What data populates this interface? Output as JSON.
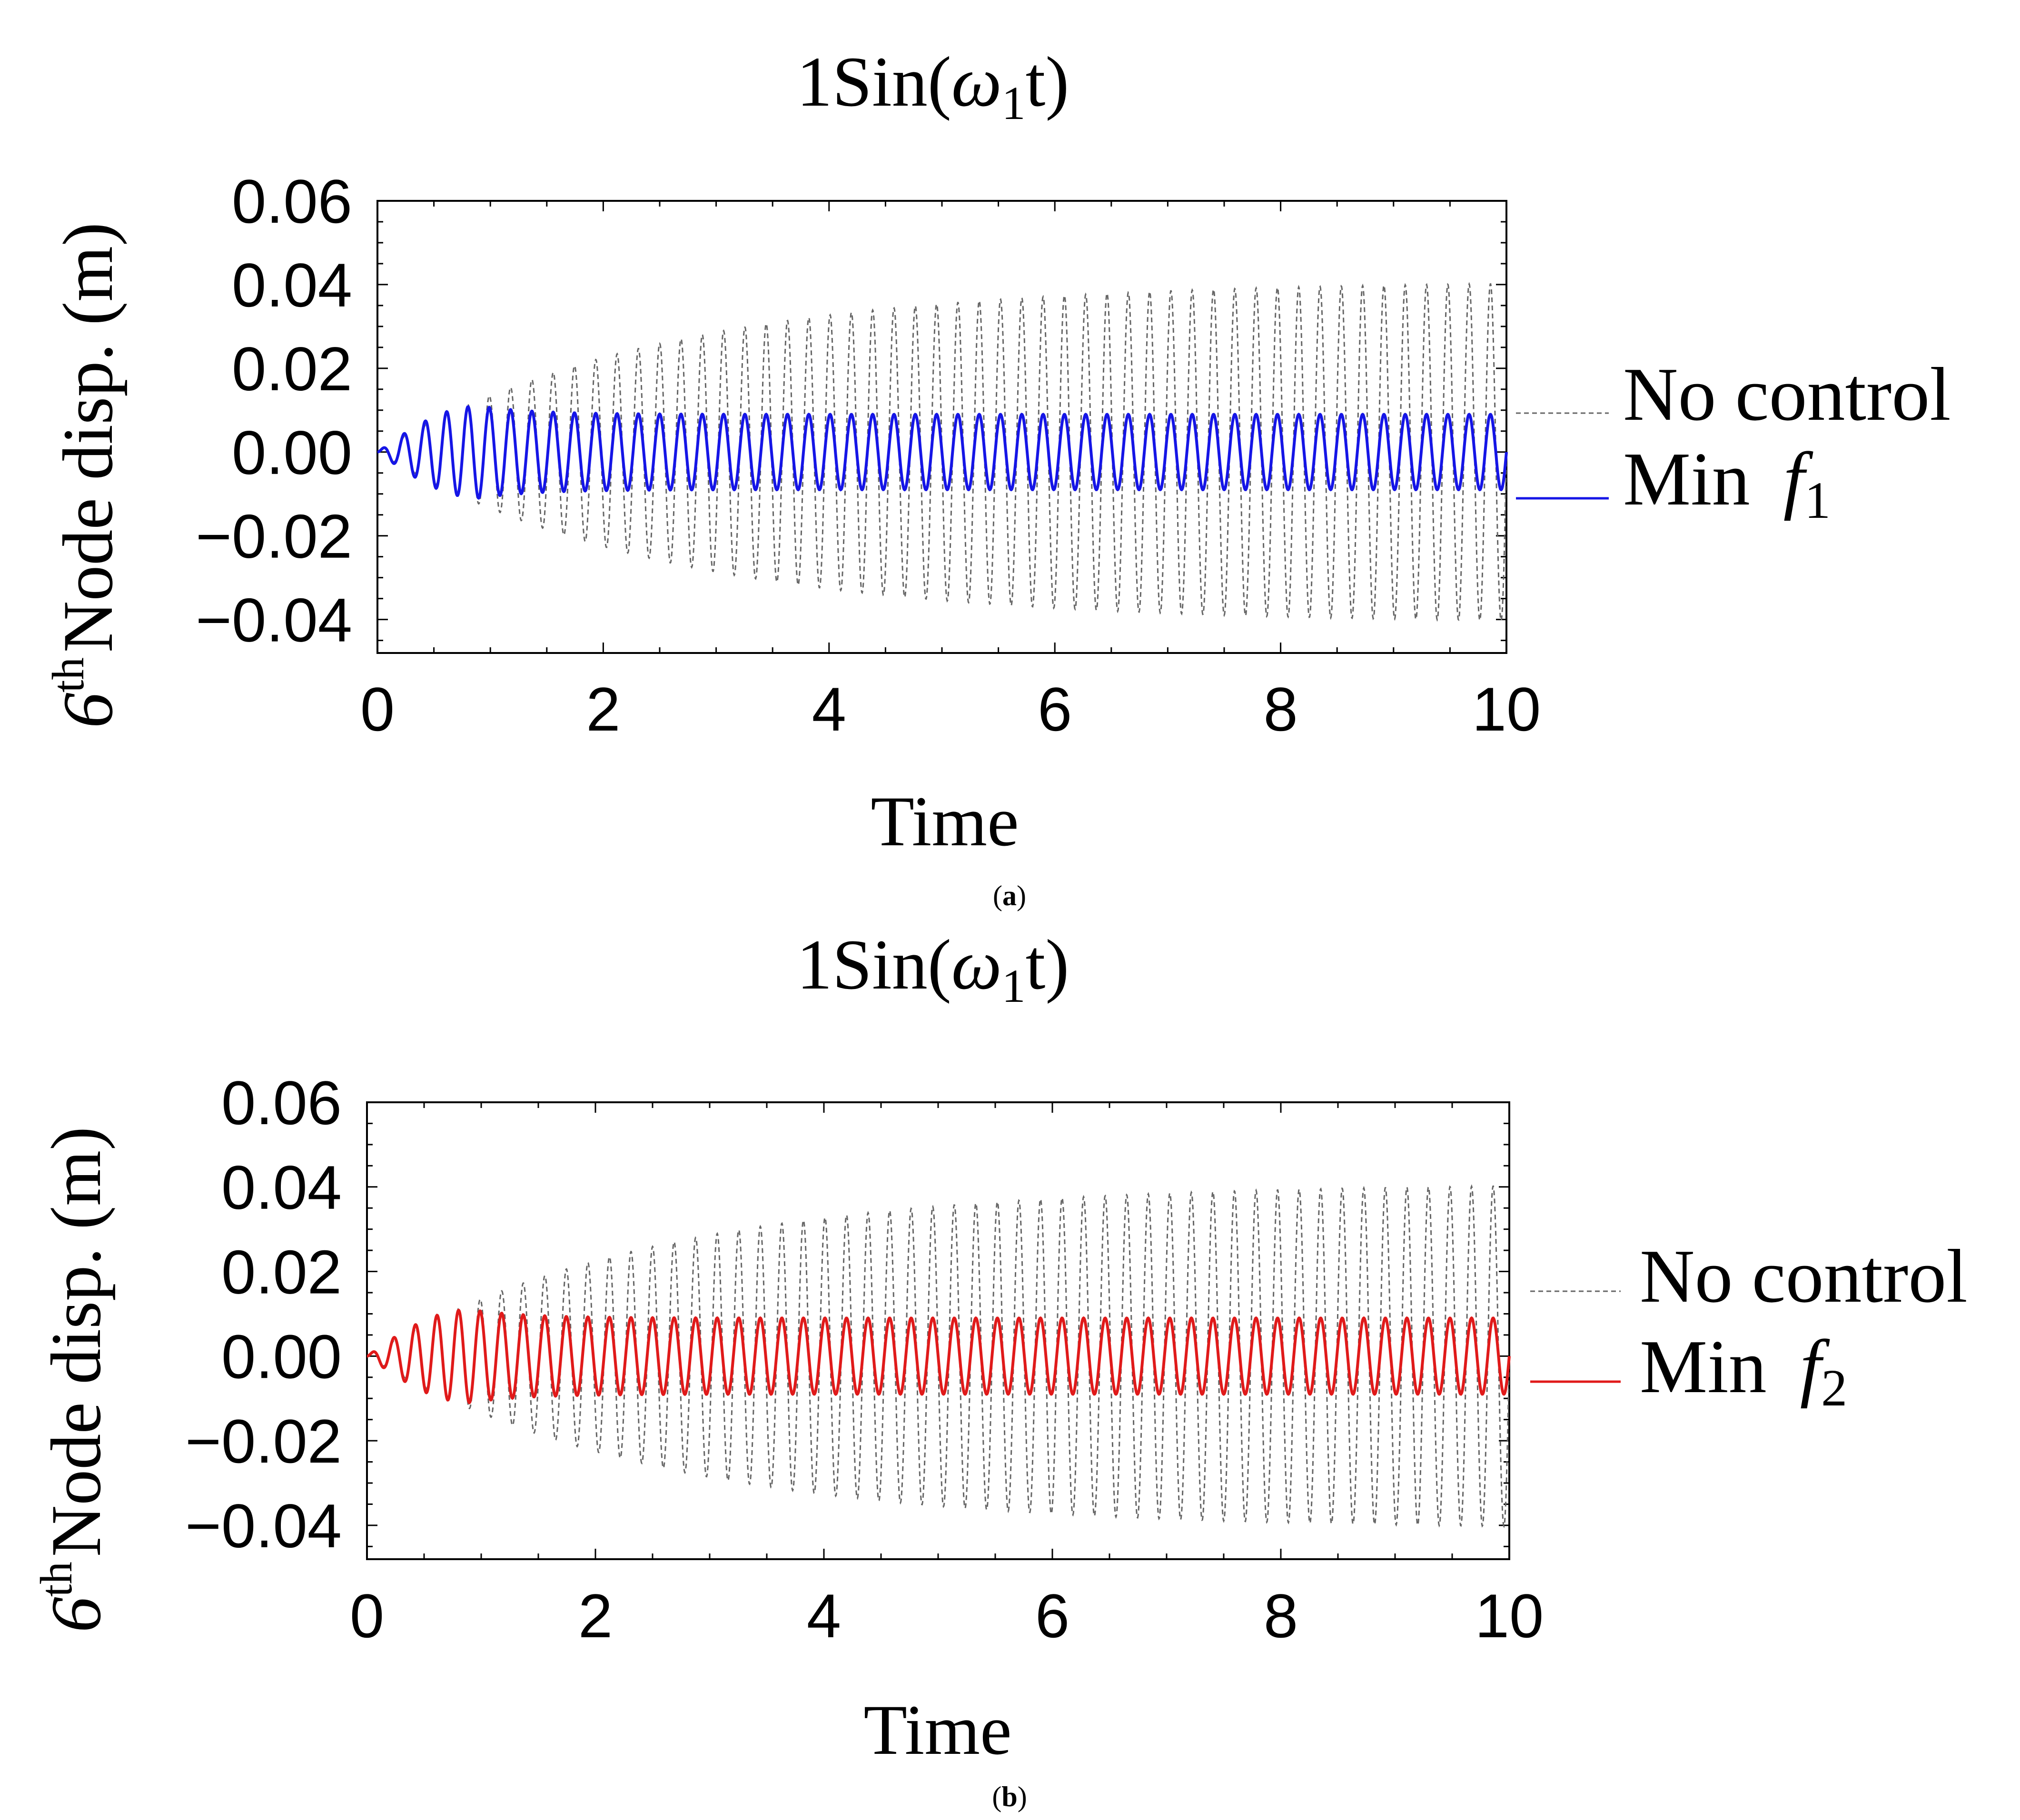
{
  "colors": {
    "no_control": "#666666",
    "min_f1": "#1515e6",
    "min_f2": "#e01a1a"
  },
  "chart_data": [
    {
      "type": "line",
      "panel": "(a)",
      "title": "1Sin(ω₁t)",
      "title_parts": {
        "prefix": "1Sin(",
        "omega": "ω",
        "sub": "1",
        "suffix": "t)"
      },
      "xlabel": "Time",
      "ylabel_parts": {
        "six": "6",
        "sup": "th",
        "rest": "Node disp. (m)"
      },
      "xlim": [
        0,
        10
      ],
      "ylim": [
        -0.048,
        0.06
      ],
      "xticks": [
        {
          "v": 0,
          "label": "0"
        },
        {
          "v": 2,
          "label": "2"
        },
        {
          "v": 4,
          "label": "4"
        },
        {
          "v": 6,
          "label": "6"
        },
        {
          "v": 8,
          "label": "8"
        },
        {
          "v": 10,
          "label": "10"
        }
      ],
      "yticks": [
        {
          "v": 0.06,
          "label": "0.06"
        },
        {
          "v": 0.04,
          "label": "0.04"
        },
        {
          "v": 0.02,
          "label": "0.02"
        },
        {
          "v": 0,
          "label": "0.00"
        },
        {
          "v": -0.02,
          "label": "−0.02"
        },
        {
          "v": -0.04,
          "label": "−0.04"
        }
      ],
      "frequency_cycles_per_unit": 5.3,
      "series": [
        {
          "name": "No control",
          "style": "dashed",
          "color": "#666666",
          "amplitude_final": 0.041,
          "time_constant": 2.5,
          "ramp": "exponential"
        },
        {
          "name": "Min f1",
          "legend_prefix": "Min ",
          "legend_var": "f",
          "legend_sub": "1",
          "style": "solid",
          "color": "#1515e6",
          "amplitude_final": 0.009,
          "peak_amplitude": 0.011,
          "peak_time": 0.9,
          "ramp": "overshoot"
        }
      ]
    },
    {
      "type": "line",
      "panel": "(b)",
      "title": "1Sin(ω₁t)",
      "title_parts": {
        "prefix": "1Sin(",
        "omega": "ω",
        "sub": "1",
        "suffix": "t)"
      },
      "xlabel": "Time",
      "ylabel_parts": {
        "six": "6",
        "sup": "th",
        "rest": "Node disp. (m)"
      },
      "xlim": [
        0,
        10
      ],
      "ylim": [
        -0.048,
        0.06
      ],
      "xticks": [
        {
          "v": 0,
          "label": "0"
        },
        {
          "v": 2,
          "label": "2"
        },
        {
          "v": 4,
          "label": "4"
        },
        {
          "v": 6,
          "label": "6"
        },
        {
          "v": 8,
          "label": "8"
        },
        {
          "v": 10,
          "label": "10"
        }
      ],
      "yticks": [
        {
          "v": 0.06,
          "label": "0.06"
        },
        {
          "v": 0.04,
          "label": "0.04"
        },
        {
          "v": 0.02,
          "label": "0.02"
        },
        {
          "v": 0,
          "label": "0.00"
        },
        {
          "v": -0.02,
          "label": "−0.02"
        },
        {
          "v": -0.04,
          "label": "−0.04"
        }
      ],
      "frequency_cycles_per_unit": 5.3,
      "series": [
        {
          "name": "No control",
          "style": "dashed",
          "color": "#666666",
          "amplitude_final": 0.041,
          "time_constant": 2.5,
          "ramp": "exponential"
        },
        {
          "name": "Min f2",
          "legend_prefix": "Min ",
          "legend_var": "f",
          "legend_sub": "2",
          "style": "solid",
          "color": "#e01a1a",
          "amplitude_final": 0.009,
          "peak_amplitude": 0.011,
          "peak_time": 0.9,
          "ramp": "overshoot"
        }
      ]
    }
  ]
}
